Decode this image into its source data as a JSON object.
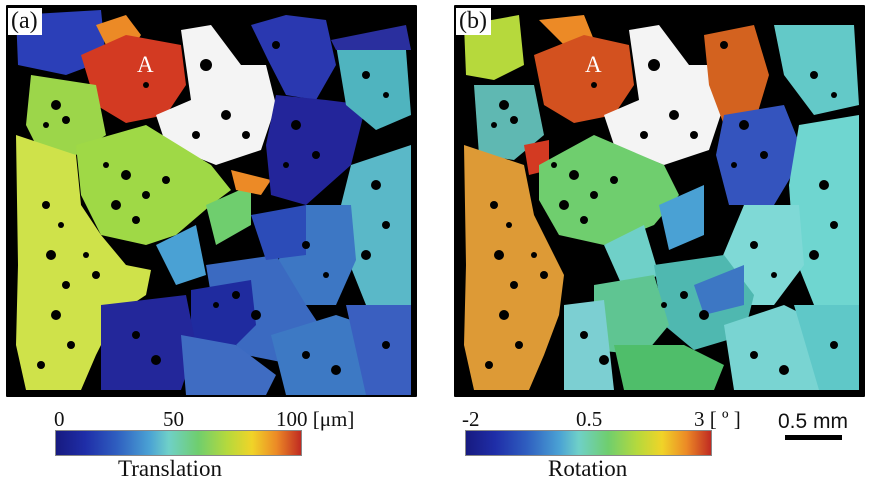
{
  "panel_a": {
    "label": "(a)",
    "grain_label": "A"
  },
  "panel_b": {
    "label": "(b)",
    "grain_label": "A"
  },
  "colorbar_a": {
    "tick_min": "0",
    "tick_mid": "50",
    "tick_max": "100 [μm]",
    "title": "Translation"
  },
  "colorbar_b": {
    "tick_min": "-2",
    "tick_mid": "0.5",
    "tick_max": "3 [ º ]",
    "title": "Rotation"
  },
  "scale_bar": {
    "label": "0.5 mm"
  },
  "colors": {
    "background": "#000000",
    "colormap": "jet"
  }
}
